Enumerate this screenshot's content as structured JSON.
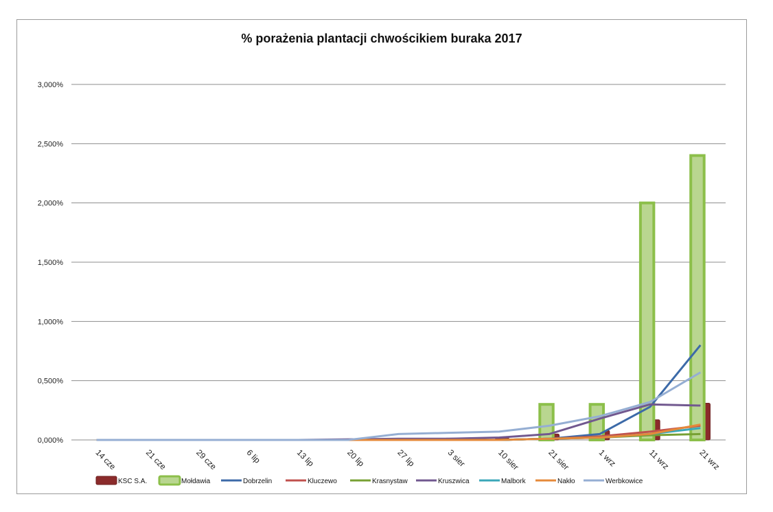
{
  "chart_data": {
    "type": "bar",
    "title": "%  porażenia plantacji chwościkiem buraka 2017",
    "xlabel": "",
    "ylabel": "",
    "categories": [
      "14 cze",
      "21 cze",
      "29 cze",
      "6 lip",
      "13 lip",
      "20 lip",
      "27 lip",
      "3 sier",
      "10 sier",
      "21 sier",
      "1 wrz",
      "11 wrz",
      "21 wrz"
    ],
    "ylim": [
      0,
      3.0
    ],
    "yticks": [
      {
        "value": 0.0,
        "label": "0,000%"
      },
      {
        "value": 0.5,
        "label": "0,500%"
      },
      {
        "value": 1.0,
        "label": "1,000%"
      },
      {
        "value": 1.5,
        "label": "1,500%"
      },
      {
        "value": 2.0,
        "label": "2,000%"
      },
      {
        "value": 2.5,
        "label": "2,500%"
      },
      {
        "value": 3.0,
        "label": "3,000%"
      }
    ],
    "grid": true,
    "legend_position": "bottom",
    "series": [
      {
        "name": "KSC S.A.",
        "kind": "bar",
        "color": "#8b2b2b",
        "values": [
          0,
          0,
          0,
          0,
          0,
          0.005,
          0.01,
          0.015,
          0.02,
          0.05,
          0.08,
          0.17,
          0.31
        ]
      },
      {
        "name": "Mołdawia",
        "kind": "bar",
        "color": "#8cbf4a",
        "values": [
          0,
          0,
          0,
          0,
          0,
          0,
          0,
          0,
          0,
          0.3,
          0.3,
          2.0,
          2.4
        ]
      },
      {
        "name": "Dobrzelin",
        "kind": "line",
        "color": "#3c6aa8",
        "values": [
          0,
          0,
          0,
          0,
          0,
          0,
          0,
          0,
          0,
          0.01,
          0.05,
          0.28,
          0.8
        ]
      },
      {
        "name": "Kluczewo",
        "kind": "line",
        "color": "#c0504d",
        "values": [
          0,
          0,
          0,
          0,
          0,
          0,
          0,
          0,
          0,
          0.01,
          0.03,
          0.07,
          0.12
        ]
      },
      {
        "name": "Krasnystaw",
        "kind": "line",
        "color": "#77a033",
        "values": [
          0,
          0,
          0,
          0,
          0,
          0,
          0,
          0,
          0,
          0.01,
          0.02,
          0.04,
          0.05
        ]
      },
      {
        "name": "Kruszwica",
        "kind": "line",
        "color": "#71588f",
        "values": [
          0,
          0,
          0,
          0,
          0,
          0.005,
          0.01,
          0.01,
          0.02,
          0.05,
          0.18,
          0.3,
          0.29
        ]
      },
      {
        "name": "Malbork",
        "kind": "line",
        "color": "#3aa7b8",
        "values": [
          0,
          0,
          0,
          0,
          0,
          0,
          0,
          0,
          0,
          0.01,
          0.02,
          0.05,
          0.1
        ]
      },
      {
        "name": "Nakło",
        "kind": "line",
        "color": "#e5893a",
        "values": [
          0,
          0,
          0,
          0,
          0,
          0,
          0,
          0,
          0,
          0.01,
          0.02,
          0.05,
          0.13
        ]
      },
      {
        "name": "Werbkowice",
        "kind": "line",
        "color": "#95aed3",
        "values": [
          0,
          0,
          0,
          0,
          0,
          0,
          0.05,
          0.06,
          0.07,
          0.12,
          0.2,
          0.32,
          0.57
        ]
      }
    ]
  }
}
